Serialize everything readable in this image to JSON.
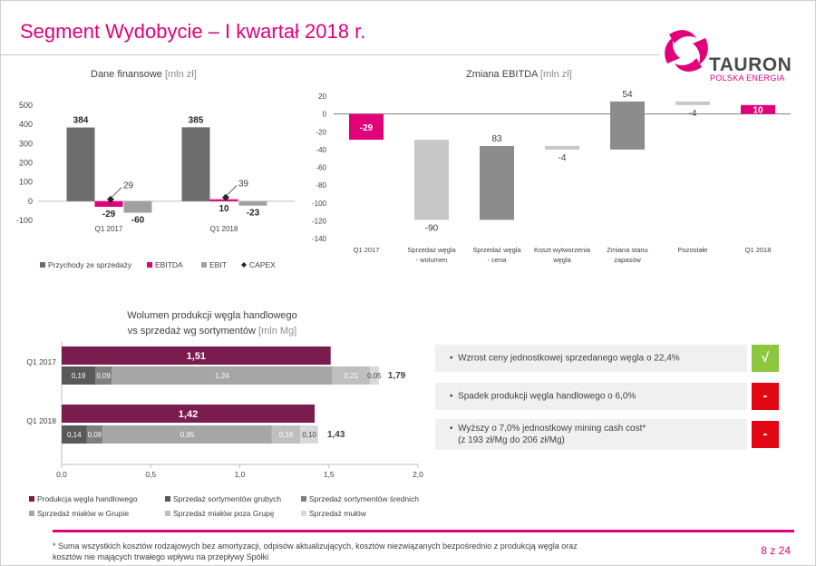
{
  "page": {
    "title": "Segment Wydobycie – I kwartał 2018 r.",
    "page_number": "8 z 24",
    "footnote": "* Suma wszystkich kosztów rodzajowych bez amortyzacji, odpisów aktualizujących, kosztów niezwiązanych bezpośrednio z produkcją węgla oraz kosztów nie mających trwałego wpływu na przepływy Spółki"
  },
  "logo": {
    "word": "TAURON",
    "sub": "POLSKA ENERGIA"
  },
  "colors": {
    "accent": "#e2007a",
    "dark_gray": "#6d6d6d",
    "mid_gray": "#a0a0a0",
    "light_gray": "#c8c8c8",
    "plum": "#7a1c4e",
    "green": "#8dc63f",
    "red": "#e30613"
  },
  "bullets": [
    {
      "text": "Wzrost ceny jednostkowej sprzedanego węgla o 22,4%",
      "badge": "√",
      "status": "positive"
    },
    {
      "text": "Spadek produkcji węgla handlowego o 6,0%",
      "badge": "-",
      "status": "negative"
    },
    {
      "text": "Wyższy o 7,0% jednostkowy mining cash cost*\n(z 193 zł/Mg do 206 zł/Mg)",
      "badge": "-",
      "status": "negative"
    }
  ],
  "chart_data": [
    {
      "type": "bar",
      "title": "Dane finansowe",
      "title_unit": "[mln zł]",
      "categories": [
        "Q1 2017",
        "Q1 2018"
      ],
      "series": [
        {
          "name": "Przychody ze sprzedaży",
          "values": [
            384,
            385
          ],
          "labels": [
            "384",
            "385"
          ]
        },
        {
          "name": "EBITDA",
          "values": [
            -29,
            10
          ],
          "labels": [
            "-29",
            "10"
          ]
        },
        {
          "name": "EBIT",
          "values": [
            -60,
            -23
          ],
          "labels": [
            "-60",
            "-23"
          ]
        },
        {
          "name": "CAPEX",
          "values": [
            29,
            39
          ],
          "labels": [
            "29",
            "39"
          ],
          "marker": "diamond"
        }
      ],
      "ylim": [
        -100,
        500
      ],
      "yticks": [
        -100,
        0,
        100,
        200,
        300,
        400,
        500
      ],
      "legend": "bottom"
    },
    {
      "type": "bar",
      "subtype": "waterfall",
      "title": "Zmiana EBITDA",
      "title_unit": "[mln zł]",
      "steps": [
        {
          "category": "Q1 2017",
          "kind": "total",
          "value": -29,
          "label": "-29"
        },
        {
          "category": "Sprzedaż węgla - wolumen",
          "kind": "delta",
          "value": -90,
          "label": "-90"
        },
        {
          "category": "Sprzedaż węgla - cena",
          "kind": "delta",
          "value": 83,
          "label": "83"
        },
        {
          "category": "Koszt wytworzenia węgla",
          "kind": "delta",
          "value": -4,
          "label": "-4"
        },
        {
          "category": "Zmiana stanu zapasów",
          "kind": "delta",
          "value": 54,
          "label": "54"
        },
        {
          "category": "Pozostałe",
          "kind": "delta",
          "value": -4,
          "label": "-4"
        },
        {
          "category": "Q1 2018",
          "kind": "total",
          "value": 10,
          "label": "10"
        }
      ],
      "ylim": [
        -140,
        20
      ],
      "yticks": [
        20,
        0,
        -20,
        -40,
        -60,
        -80,
        -100,
        -120,
        -140
      ]
    },
    {
      "type": "bar",
      "subtype": "horizontal-stacked",
      "title": "Wolumen produkcji węgla handlowego",
      "title_line2": "vs sprzedaż wg sortymentów",
      "title_unit": "[mln Mg]",
      "categories": [
        "Q1 2017",
        "Q1 2018"
      ],
      "production": {
        "name": "Produkcja węgla handlowego",
        "values": [
          1.51,
          1.42
        ],
        "labels": [
          "1,51",
          "1,42"
        ]
      },
      "series": [
        {
          "name": "Sprzedaż sortymentów grubych",
          "values": [
            0.19,
            0.14
          ],
          "labels": [
            "0,19",
            "0,14"
          ]
        },
        {
          "name": "Sprzedaż sortymentów średnich",
          "values": [
            0.09,
            0.09
          ],
          "labels": [
            "0,09",
            "0,09"
          ]
        },
        {
          "name": "Sprzedaż miałów w Grupie",
          "values": [
            1.24,
            0.95
          ],
          "labels": [
            "1,24",
            "0,95"
          ]
        },
        {
          "name": "Sprzedaż miałów poza Grupę",
          "values": [
            0.21,
            0.16
          ],
          "labels": [
            "0,21",
            "0,16"
          ]
        },
        {
          "name": "Sprzedaż mułów",
          "values": [
            0.05,
            0.1
          ],
          "labels": [
            "0,05",
            "0,10"
          ]
        }
      ],
      "totals": [
        "1,79",
        "1,43"
      ],
      "xlim": [
        0,
        2.0
      ],
      "xticks": [
        "0,0",
        "0,5",
        "1,0",
        "1,5",
        "2,0"
      ],
      "legend": "bottom"
    }
  ]
}
